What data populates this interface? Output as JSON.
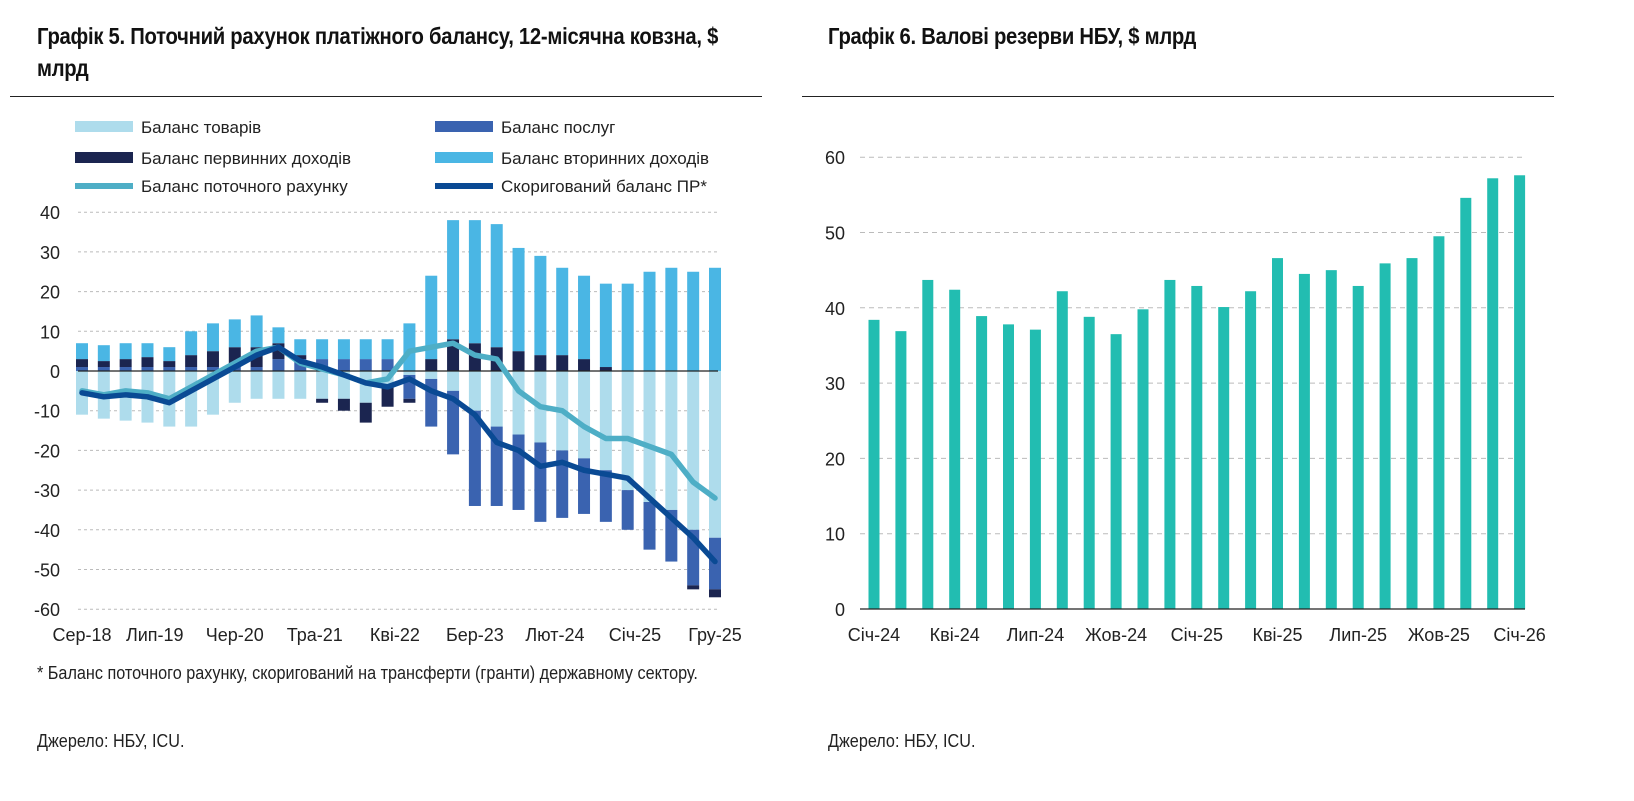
{
  "chart_data": [
    {
      "type": "bar",
      "title": "Графік 5. Поточний рахунок платіжного балансу, 12-місячна ковзна, $ млрд",
      "ylim": [
        -60,
        40
      ],
      "yticks": [
        40,
        30,
        20,
        10,
        0,
        -10,
        -20,
        -30,
        -40,
        -50,
        -60
      ],
      "xtick_labels": [
        "Сер-18",
        "Лип-19",
        "Чер-20",
        "Тра-21",
        "Кві-22",
        "Бер-23",
        "Лют-24",
        "Січ-25",
        "Гру-25"
      ],
      "xtick_index": [
        0,
        10,
        21,
        32,
        43,
        54,
        65,
        76,
        87
      ],
      "month_index": [
        0,
        3,
        6,
        9,
        12,
        15,
        18,
        21,
        24,
        27,
        30,
        33,
        36,
        39,
        42,
        45,
        48,
        51,
        54,
        57,
        60,
        63,
        66,
        69,
        72,
        75,
        78,
        81,
        84,
        87
      ],
      "legend_position": "top",
      "grid": true,
      "series": [
        {
          "name": "Баланс товарів",
          "kind": "bar",
          "color": "#aedcec",
          "values": [
            -11,
            -12,
            -12.5,
            -13,
            -14,
            -14,
            -11,
            -8,
            -7,
            -7,
            -7,
            -7,
            -7,
            -8,
            -4,
            -1,
            -2,
            -5,
            -10,
            -14,
            -16,
            -18,
            -20,
            -22,
            -25,
            -30,
            -33,
            -35,
            -40,
            -42
          ]
        },
        {
          "name": "Баланс послуг",
          "kind": "bar",
          "color": "#3a63b0",
          "values": [
            1,
            1,
            1,
            1,
            1,
            1,
            1,
            1,
            1,
            3,
            3,
            3,
            3,
            3,
            3,
            -6,
            -12,
            -16,
            -24,
            -20,
            -19,
            -20,
            -17,
            -14,
            -13,
            -10,
            -12,
            -13,
            -14,
            -13
          ]
        },
        {
          "name": "Баланс первинних доходів",
          "kind": "bar",
          "color": "#1b2550",
          "values": [
            2,
            1.5,
            2,
            2.5,
            1.5,
            3,
            4,
            5,
            5,
            4,
            1,
            -1,
            -3,
            -5,
            -5,
            -1,
            3,
            8,
            7,
            6,
            5,
            4,
            4,
            3,
            1,
            0,
            0,
            0,
            -1,
            -2
          ]
        },
        {
          "name": "Баланс вторинних доходів",
          "kind": "bar",
          "color": "#4ab6e4",
          "values": [
            4,
            4,
            4,
            3.5,
            3.5,
            6,
            7,
            7,
            8,
            4,
            4,
            5,
            5,
            5,
            5,
            12,
            21,
            30,
            31,
            31,
            26,
            25,
            22,
            21,
            21,
            22,
            25,
            26,
            25,
            26
          ]
        },
        {
          "name": "Баланс поточного рахунку",
          "kind": "line",
          "color": "#4eaec6",
          "values": [
            -5,
            -6,
            -5,
            -5.5,
            -7,
            -4,
            -1,
            2,
            5,
            6,
            2,
            0.5,
            -1,
            -3,
            -2,
            5,
            6,
            7,
            4,
            3,
            -5,
            -9,
            -10,
            -14,
            -17,
            -17,
            -19,
            -21,
            -28,
            -32
          ]
        },
        {
          "name": "Скоригований баланс ПР*",
          "kind": "line",
          "color": "#0a4a94",
          "values": [
            -5.5,
            -6.5,
            -6,
            -6.5,
            -8,
            -5,
            -2,
            1,
            4,
            6,
            2.5,
            1,
            -1,
            -3,
            -4,
            -2,
            -5,
            -7,
            -11,
            -18,
            -20,
            -24,
            -23,
            -25,
            -26,
            -27,
            -32,
            -37,
            -42,
            -48
          ]
        }
      ],
      "footnote": "* Баланс поточного рахунку, скоригований на трансферти (гранти) державному сектору.",
      "source": "Джерело: НБУ, ICU."
    },
    {
      "type": "bar",
      "title": "Графік 6. Валові резерви НБУ, $ млрд",
      "ylim": [
        0,
        60
      ],
      "yticks": [
        60,
        50,
        40,
        30,
        20,
        10,
        0
      ],
      "grid": true,
      "color": "#22bdb1",
      "xtick_labels": [
        "Січ-24",
        "Кві-24",
        "Лип-24",
        "Жов-24",
        "Січ-25",
        "Кві-25",
        "Лип-25",
        "Жов-25",
        "Січ-26"
      ],
      "xtick_index": [
        0,
        3,
        6,
        9,
        12,
        15,
        18,
        21,
        24
      ],
      "values": [
        38.4,
        36.9,
        43.7,
        42.4,
        38.9,
        37.8,
        37.1,
        42.2,
        38.8,
        36.5,
        39.8,
        43.7,
        42.9,
        40.1,
        42.2,
        46.6,
        44.5,
        45.0,
        42.9,
        45.9,
        46.6,
        49.5,
        54.6,
        57.2,
        57.6
      ],
      "source": "Джерело: НБУ, ICU."
    }
  ]
}
